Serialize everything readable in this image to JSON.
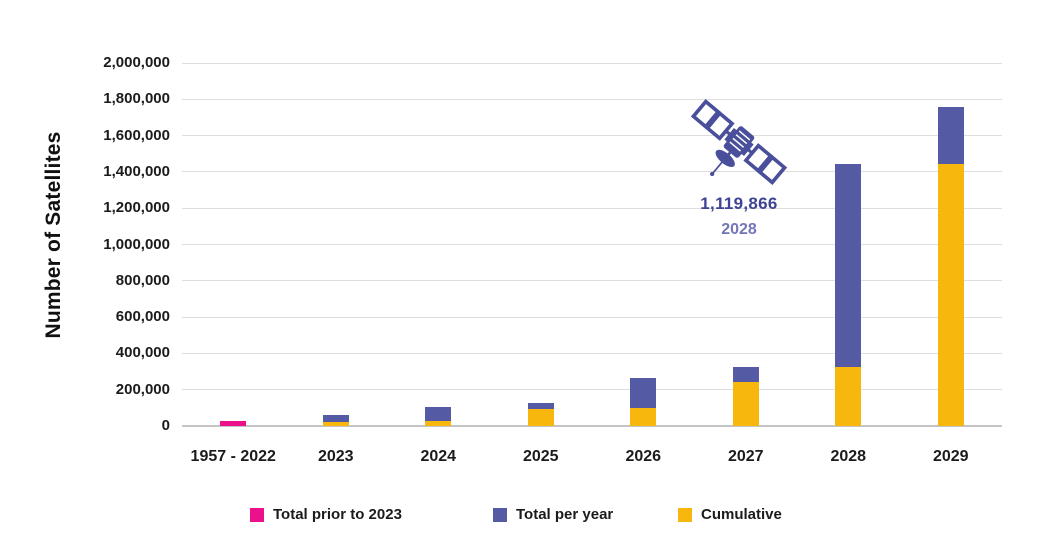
{
  "chart_data": {
    "type": "bar",
    "stacked": true,
    "title": "",
    "ylabel": "Number of Satellites",
    "xlabel": "",
    "ylim": [
      0,
      2000000
    ],
    "ytick_interval": 200000,
    "ytick_labels": [
      "0",
      "200,000",
      "400,000",
      "600,000",
      "800,000",
      "1,000,000",
      "1,200,000",
      "1,400,000",
      "1,600,000",
      "1,800,000",
      "2,000,000"
    ],
    "categories": [
      "1957 - 2022",
      "2023",
      "2024",
      "2025",
      "2026",
      "2027",
      "2028",
      "2029"
    ],
    "series": [
      {
        "name": "Total prior to 2023",
        "color": "#EB118C",
        "values": [
          25000,
          0,
          0,
          0,
          0,
          0,
          0,
          0
        ]
      },
      {
        "name": "Cumulative",
        "color": "#F8B70D",
        "values": [
          0,
          20000,
          30000,
          95000,
          100000,
          245000,
          325000,
          1445000
        ]
      },
      {
        "name": "Total per year",
        "color": "#555AA5",
        "values": [
          0,
          40000,
          75000,
          30000,
          165000,
          80000,
          1119866,
          310000
        ]
      }
    ],
    "legend": [
      {
        "label": "Total prior to 2023",
        "color": "#EB118C"
      },
      {
        "label": "Total per year",
        "color": "#555AA5"
      },
      {
        "label": "Cumulative",
        "color": "#F8B70D"
      }
    ],
    "legend_position": "bottom",
    "grid": true,
    "annotation": {
      "icon": "satellite-icon",
      "value": "1,119,866",
      "year": "2028",
      "target_category": "2028"
    }
  }
}
